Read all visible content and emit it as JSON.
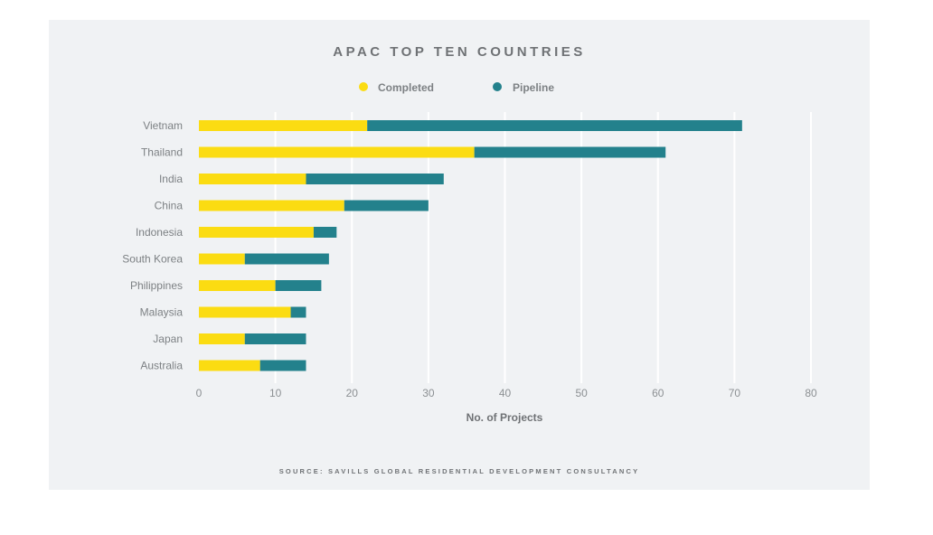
{
  "chart_data": {
    "type": "bar",
    "orientation": "horizontal",
    "stacked": true,
    "title": "APAC TOP TEN COUNTRIES",
    "categories": [
      "Vietnam",
      "Thailand",
      "India",
      "China",
      "Indonesia",
      "South Korea",
      "Philippines",
      "Malaysia",
      "Japan",
      "Australia"
    ],
    "series": [
      {
        "name": "Completed",
        "color": "#fbdc12",
        "values": [
          22,
          36,
          14,
          19,
          15,
          6,
          10,
          12,
          6,
          8
        ]
      },
      {
        "name": "Pipeline",
        "color": "#23818c",
        "values": [
          49,
          25,
          18,
          11,
          3,
          11,
          6,
          2,
          8,
          6
        ]
      }
    ],
    "xlabel": "No. of Projects",
    "ylabel": "",
    "xlim": [
      0,
      80
    ],
    "xticks": [
      0,
      10,
      20,
      30,
      40,
      50,
      60,
      70,
      80
    ],
    "grid": true,
    "legend_position": "top-center",
    "source": "SOURCE: SAVILLS GLOBAL RESIDENTIAL DEVELOPMENT CONSULTANCY"
  }
}
